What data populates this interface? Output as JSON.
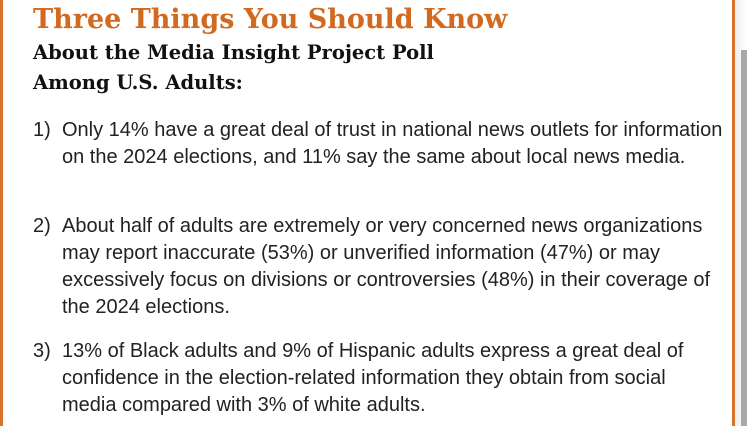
{
  "header": {
    "title": "Three Things You Should Know",
    "subtitle_line1": "About the Media Insight Project Poll",
    "subtitle_line2": "Among U.S. Adults:"
  },
  "items": [
    {
      "number": "1)",
      "text": "Only 14% have a great deal of trust in national news outlets for information on the 2024 elections, and 11% say the same about local news media."
    },
    {
      "number": "2)",
      "text": "About half of adults are extremely or very concerned news organizations may report inaccurate (53%) or unverified information (47%) or may excessively focus on divisions or controversies (48%) in their coverage of the 2024 elections."
    },
    {
      "number": "3)",
      "text": "13% of Black adults and 9% of Hispanic adults express a great deal of confidence in the election-related information they obtain from social media compared with 3% of white adults."
    }
  ],
  "colors": {
    "accent": "#d2691e",
    "border": "#d9732c",
    "text": "#222222"
  }
}
